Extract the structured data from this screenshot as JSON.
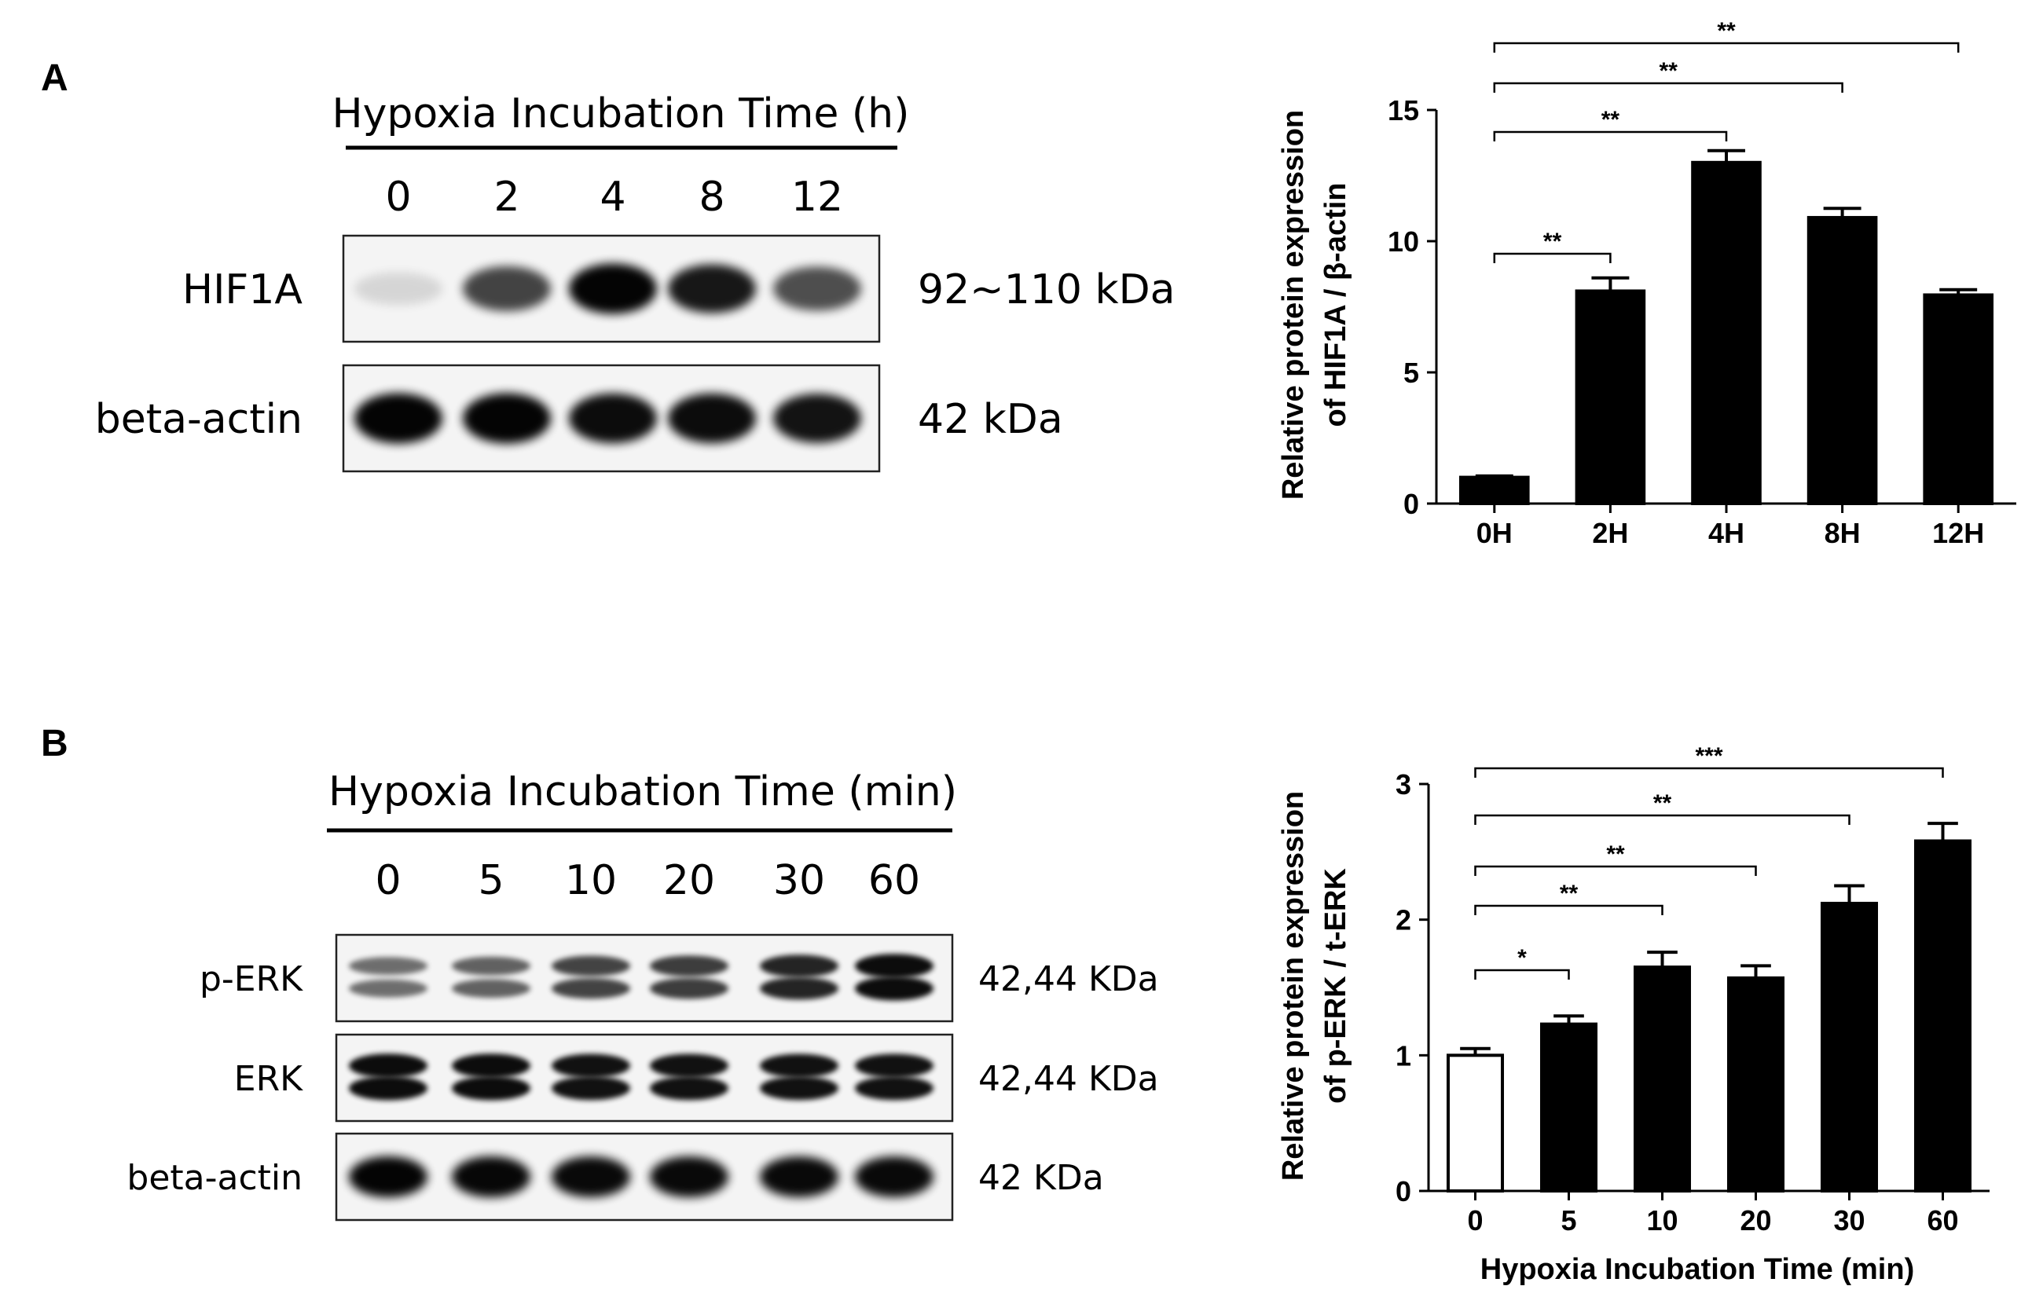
{
  "panel_a": {
    "label": "A",
    "blot": {
      "title": "Hypoxia Incubation Time (h)",
      "lanes": [
        "0",
        "2",
        "4",
        "8",
        "12"
      ],
      "rows": [
        {
          "name": "HIF1A",
          "size": "92~110 kDa",
          "band_intensity": [
            0.12,
            0.72,
            0.98,
            0.9,
            0.68
          ]
        },
        {
          "name": "beta-actin",
          "size": "42 kDa",
          "band_intensity": [
            0.98,
            0.98,
            0.95,
            0.95,
            0.92
          ]
        }
      ]
    }
  },
  "panel_b": {
    "label": "B",
    "blot": {
      "title": "Hypoxia Incubation Time (min)",
      "lanes": [
        "0",
        "5",
        "10",
        "20",
        "30",
        "60"
      ],
      "rows": [
        {
          "name": "p-ERK",
          "size": "42,44 KDa",
          "band_intensity": [
            0.55,
            0.6,
            0.72,
            0.75,
            0.85,
            0.95
          ],
          "double": true
        },
        {
          "name": "ERK",
          "size": "42,44 KDa",
          "band_intensity": [
            0.95,
            0.95,
            0.93,
            0.93,
            0.93,
            0.93
          ],
          "double": true
        },
        {
          "name": "beta-actin",
          "size": "42 KDa",
          "band_intensity": [
            0.98,
            0.97,
            0.96,
            0.96,
            0.96,
            0.96
          ],
          "double": false
        }
      ]
    }
  },
  "chart_data": [
    {
      "type": "bar",
      "categories": [
        "0H",
        "2H",
        "4H",
        "8H",
        "12H"
      ],
      "values": [
        1.0,
        8.1,
        13.0,
        10.9,
        7.95
      ],
      "errors": [
        0.05,
        0.5,
        0.45,
        0.35,
        0.2
      ],
      "fills": [
        "#000000",
        "#000000",
        "#000000",
        "#000000",
        "#000000"
      ],
      "ylabel_line1": "Relative protein expression",
      "ylabel_line2": "of HIF1A / β-actin",
      "xlabel": "",
      "ylim": [
        0,
        15
      ],
      "yticks": [
        "0",
        "5",
        "10",
        "15"
      ],
      "significance": [
        {
          "from": 0,
          "to": 1,
          "label": "**"
        },
        {
          "from": 0,
          "to": 2,
          "label": "**"
        },
        {
          "from": 0,
          "to": 3,
          "label": "**"
        },
        {
          "from": 0,
          "to": 4,
          "label": "**"
        }
      ]
    },
    {
      "type": "bar",
      "categories": [
        "0",
        "5",
        "10",
        "20",
        "30",
        "60"
      ],
      "values": [
        1.0,
        1.23,
        1.65,
        1.57,
        2.12,
        2.58
      ],
      "errors": [
        0.05,
        0.06,
        0.11,
        0.09,
        0.13,
        0.13
      ],
      "fills": [
        "#ffffff",
        "#000000",
        "#000000",
        "#000000",
        "#000000",
        "#000000"
      ],
      "ylabel_line1": "Relative protein expression",
      "ylabel_line2": "of p-ERK / t-ERK",
      "xlabel": "Hypoxia Incubation Time (min)",
      "ylim": [
        0,
        3
      ],
      "yticks": [
        "0",
        "1",
        "2",
        "3"
      ],
      "significance": [
        {
          "from": 0,
          "to": 1,
          "label": "*"
        },
        {
          "from": 0,
          "to": 2,
          "label": "**"
        },
        {
          "from": 0,
          "to": 3,
          "label": "**"
        },
        {
          "from": 0,
          "to": 4,
          "label": "**"
        },
        {
          "from": 0,
          "to": 5,
          "label": "***"
        }
      ]
    }
  ]
}
